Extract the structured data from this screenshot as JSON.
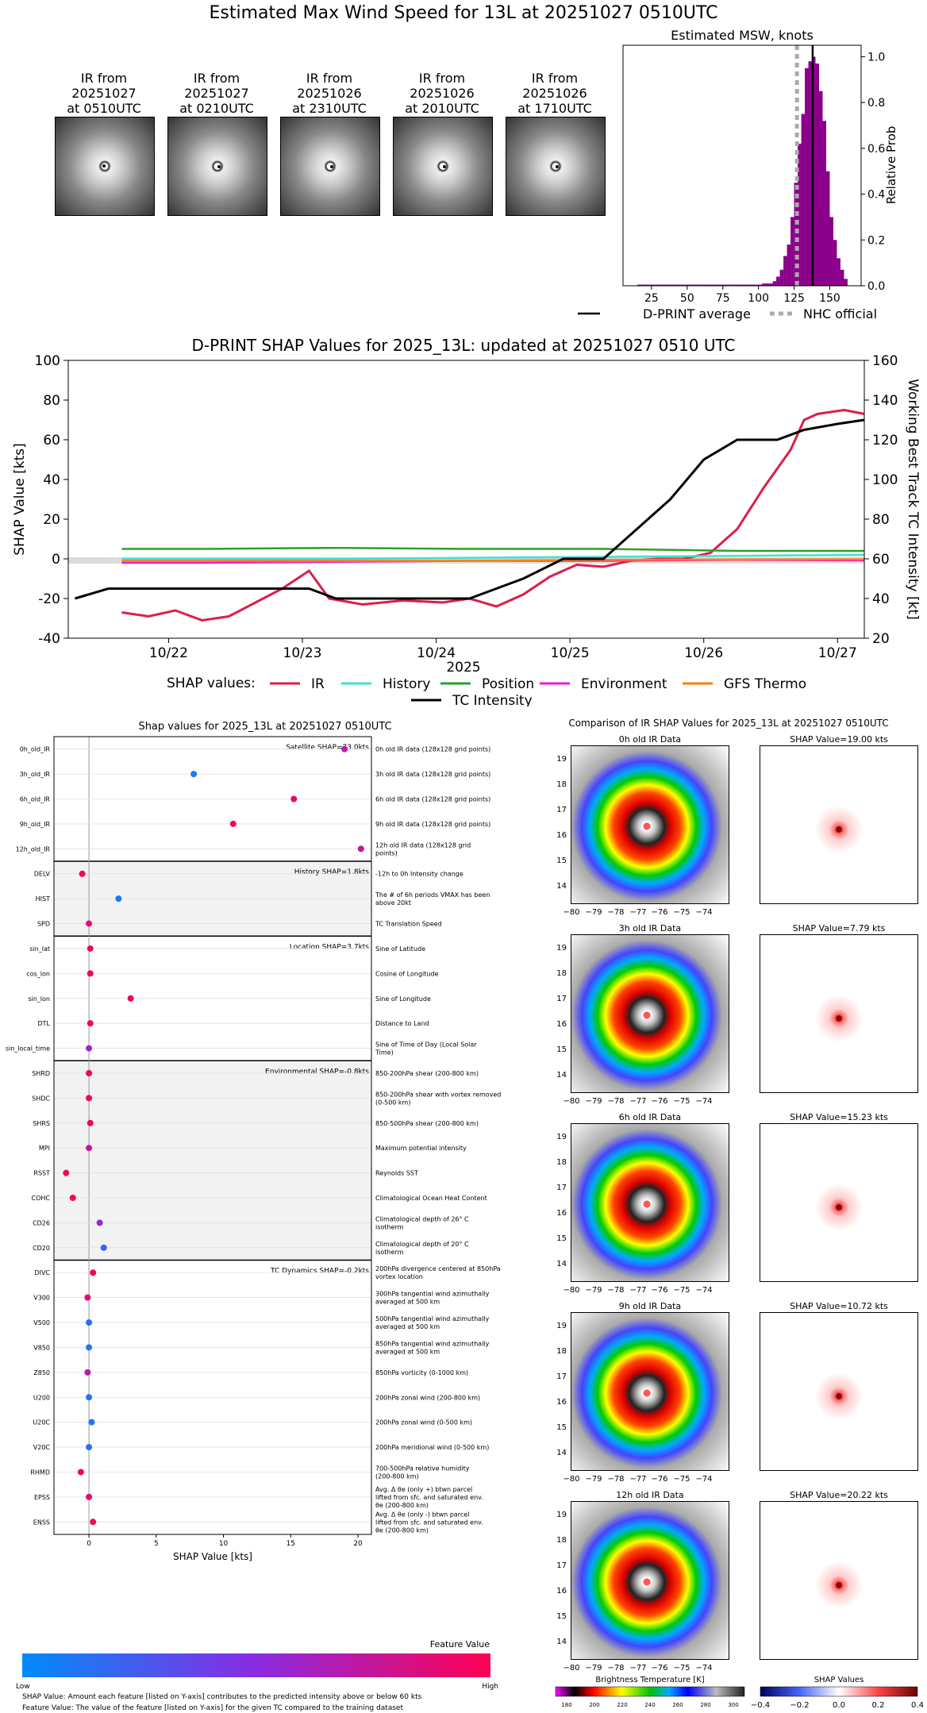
{
  "main_title": "Estimated Max Wind Speed for 13L at 20251027 0510UTC",
  "satellite_panels": [
    {
      "line1": "IR from",
      "line2": "20251027",
      "line3": "at 0510UTC"
    },
    {
      "line1": "IR from",
      "line2": "20251027",
      "line3": "at 0210UTC"
    },
    {
      "line1": "IR from",
      "line2": "20251026",
      "line3": "at 2310UTC"
    },
    {
      "line1": "IR from",
      "line2": "20251026",
      "line3": "at 2010UTC"
    },
    {
      "line1": "IR from",
      "line2": "20251026",
      "line3": "at 1710UTC"
    }
  ],
  "msw_hist": {
    "title": "Estimated MSW, knots",
    "ylabel": "Relative Prob",
    "legend": {
      "avg": "D-PRINT average",
      "nhc": "NHC official"
    }
  },
  "shap_ts": {
    "title": "D-PRINT SHAP Values for 2025_13L: updated at 20251027 0510 UTC",
    "ylabel_left": "SHAP Value [kts]",
    "ylabel_right": "Working Best Track TC Intensity [kt]",
    "xlabel": "2025",
    "legend_title": "SHAP values:",
    "legend_items": [
      "IR",
      "History",
      "Position",
      "Environment",
      "GFS Thermo",
      "TC Intensity"
    ]
  },
  "feature_panel": {
    "title": "Shap values for 2025_13L at 20251027 0510UTC",
    "xlabel": "SHAP Value [kts]",
    "group_labels": [
      "Satellite SHAP=73.0kts",
      "History SHAP=1.8kts",
      "Location SHAP=3.7kts",
      "Environmental SHAP=-0.8kts",
      "TC Dynamics SHAP=-0.2kts"
    ],
    "colorbar_title": "Feature Value",
    "colorbar_low": "Low",
    "colorbar_high": "High",
    "footnote1": "SHAP Value: Amount each feature [listed on Y-axis] contributes to the predicted intensity above or below 60 kts",
    "footnote2": "Feature Value: The value of the feature [listed on Y-axis] for the given TC compared to the training dataset"
  },
  "ir_compare": {
    "title": "Comparison of IR SHAP Values for 2025_13L at 20251027 0510UTC",
    "rows": [
      {
        "ir": "0h old IR Data",
        "shap": "SHAP Value=19.00 kts"
      },
      {
        "ir": "3h old IR Data",
        "shap": "SHAP Value=7.79 kts"
      },
      {
        "ir": "6h old IR Data",
        "shap": "SHAP Value=15.23 kts"
      },
      {
        "ir": "9h old IR Data",
        "shap": "SHAP Value=10.72 kts"
      },
      {
        "ir": "12h old IR Data",
        "shap": "SHAP Value=20.22 kts"
      }
    ],
    "lat_ticks": [
      "19",
      "18",
      "17",
      "16",
      "15",
      "14"
    ],
    "lon_ticks": [
      "−80",
      "−79",
      "−78",
      "−77",
      "−76",
      "−75",
      "−74"
    ],
    "bt_title": "Brightness Temperature [K]",
    "bt_ticks": [
      "180",
      "200",
      "220",
      "240",
      "260",
      "280",
      "300"
    ],
    "sv_title": "SHAP Values",
    "sv_ticks": [
      "−0.4",
      "−0.2",
      "0.0",
      "0.2",
      "0.4"
    ]
  },
  "chart_data": [
    {
      "type": "bar",
      "title": "Estimated MSW, knots",
      "xlabel": "",
      "ylabel": "Relative Prob",
      "xlim": [
        5,
        172
      ],
      "ylim": [
        0,
        1.05
      ],
      "xticks": [
        25,
        50,
        75,
        100,
        125,
        150
      ],
      "yticks": [
        0.0,
        0.2,
        0.4,
        0.6,
        0.8,
        1.0
      ],
      "bin_width": 2.5,
      "x": [
        15,
        17.5,
        20,
        22.5,
        25,
        27.5,
        30,
        32.5,
        35,
        37.5,
        40,
        42.5,
        45,
        47.5,
        50,
        52.5,
        55,
        57.5,
        60,
        62.5,
        65,
        67.5,
        70,
        72.5,
        75,
        77.5,
        80,
        82.5,
        85,
        87.5,
        90,
        92.5,
        95,
        97.5,
        100,
        102.5,
        105,
        107.5,
        110,
        112.5,
        115,
        117.5,
        120,
        122.5,
        125,
        127.5,
        130,
        132.5,
        135,
        137.5,
        140,
        142.5,
        145,
        147.5,
        150,
        152.5,
        155,
        157.5,
        160
      ],
      "values": [
        0.005,
        0.005,
        0.005,
        0.005,
        0.005,
        0.005,
        0.005,
        0.005,
        0.005,
        0.005,
        0.005,
        0.005,
        0.005,
        0.005,
        0.005,
        0.005,
        0.005,
        0.005,
        0.005,
        0.005,
        0.005,
        0.005,
        0.005,
        0.005,
        0.005,
        0.005,
        0.005,
        0.005,
        0.005,
        0.005,
        0.005,
        0.005,
        0.005,
        0.005,
        0.005,
        0.01,
        0.01,
        0.01,
        0.02,
        0.04,
        0.07,
        0.13,
        0.18,
        0.3,
        0.45,
        0.62,
        0.75,
        0.95,
        0.98,
        1.0,
        0.97,
        0.85,
        0.72,
        0.5,
        0.3,
        0.2,
        0.12,
        0.07,
        0.03
      ],
      "vlines": [
        {
          "name": "D-PRINT average",
          "x": 138
        },
        {
          "name": "NHC official",
          "x": 127
        }
      ]
    },
    {
      "type": "line",
      "title": "D-PRINT SHAP Values for 2025_13L: updated at 20251027 0510 UTC",
      "xlabel": "2025",
      "ylabel": "SHAP Value [kts]",
      "ylabel_right": "Working Best Track TC Intensity [kt]",
      "xlim": [
        0,
        5.95
      ],
      "ylim": [
        -40,
        100
      ],
      "ylim_right": [
        20,
        160
      ],
      "xtick_labels": [
        "10/22",
        "10/23",
        "10/24",
        "10/25",
        "10/26",
        "10/27"
      ],
      "xtick_values": [
        0.75,
        1.75,
        2.75,
        3.75,
        4.75,
        5.75
      ],
      "yticks": [
        -40,
        -20,
        0,
        20,
        40,
        60,
        80,
        100
      ],
      "yticks_right": [
        20,
        40,
        60,
        80,
        100,
        120,
        140,
        160
      ],
      "series": [
        {
          "name": "IR",
          "color": "#dc1e4b",
          "x": [
            0.4,
            0.6,
            0.8,
            1.0,
            1.2,
            1.4,
            1.6,
            1.8,
            1.95,
            2.2,
            2.5,
            2.8,
            3.0,
            3.2,
            3.4,
            3.6,
            3.8,
            4.0,
            4.2,
            4.4,
            4.6,
            4.8,
            5.0,
            5.2,
            5.4,
            5.5,
            5.6,
            5.8,
            5.95
          ],
          "values": [
            -27,
            -29,
            -26,
            -31,
            -29,
            -22,
            -15,
            -6,
            -20,
            -23,
            -21,
            -22,
            -20,
            -24,
            -18,
            -9,
            -3,
            -4,
            -1,
            0,
            0,
            3,
            15,
            36,
            55,
            70,
            73,
            75,
            73
          ]
        },
        {
          "name": "History",
          "color": "#40e0d0",
          "x": [
            0.4,
            1.0,
            2.0,
            3.0,
            4.0,
            5.0,
            5.95
          ],
          "values": [
            0,
            0,
            0,
            0.5,
            1,
            1.5,
            2
          ]
        },
        {
          "name": "Position",
          "color": "#2ca02c",
          "x": [
            0.4,
            1.0,
            2.0,
            3.0,
            4.0,
            5.0,
            5.95
          ],
          "values": [
            5,
            5,
            5.5,
            5,
            5,
            4,
            4
          ]
        },
        {
          "name": "Environment",
          "color": "#e81ed8",
          "x": [
            0.4,
            1.0,
            2.0,
            3.0,
            4.0,
            5.0,
            5.95
          ],
          "values": [
            -2,
            -2,
            -1.5,
            -1,
            -1,
            -0.5,
            -0.8
          ]
        },
        {
          "name": "GFS Thermo",
          "color": "#ff7f0e",
          "x": [
            0.4,
            1.0,
            2.0,
            3.0,
            4.0,
            5.0,
            5.95
          ],
          "values": [
            -1,
            -1,
            -1,
            -1,
            -0.5,
            -0.3,
            -0.2
          ]
        },
        {
          "name": "TC Intensity",
          "color": "#000000",
          "axis": "right",
          "x": [
            0.05,
            0.3,
            1.0,
            1.8,
            2.0,
            3.0,
            3.4,
            3.7,
            4.0,
            4.5,
            4.75,
            5.0,
            5.3,
            5.5,
            5.75,
            5.95
          ],
          "values": [
            40,
            45,
            45,
            45,
            40,
            40,
            50,
            60,
            60,
            90,
            110,
            120,
            120,
            125,
            128,
            130
          ]
        }
      ]
    },
    {
      "type": "scatter",
      "title": "Shap values for 2025_13L at 20251027 0510UTC",
      "xlabel": "SHAP Value [kts]",
      "xlim": [
        -2.6,
        21
      ],
      "xticks": [
        0,
        5,
        10,
        15,
        20
      ],
      "features": [
        "0h_old_IR",
        "3h_old_IR",
        "6h_old_IR",
        "9h_old_IR",
        "12h_old_IR",
        "DELV",
        "HIST",
        "SPD",
        "sin_lat",
        "cos_lon",
        "sin_lon",
        "DTL",
        "sin_local_time",
        "SHRD",
        "SHDC",
        "SHRS",
        "MPI",
        "RSST",
        "COHC",
        "CD26",
        "CD20",
        "DIVC",
        "V300",
        "V500",
        "V850",
        "Z850",
        "U200",
        "U20C",
        "V20C",
        "RHMD",
        "EPSS",
        "ENSS"
      ],
      "descriptions": [
        "0h old IR data (128x128 grid points)",
        "3h old IR data (128x128 grid points)",
        "6h old IR data (128x128 grid points)",
        "9h old IR data (128x128 grid points)",
        "12h old IR data (128x128 grid points)",
        "-12h to 0h Intensity change",
        "The # of 6h periods VMAX has been above 20kt",
        "TC Translation Speed",
        "Sine of Latitude",
        "Cosine of Longitude",
        "Sine of Longitude",
        "Distance to Land",
        "Sine of Time of Day (Local Solar Time)",
        "850-200hPa shear (200-800 km)",
        "850-200hPa shear with vortex removed (0-500 km)",
        "850-500hPa shear (200-800 km)",
        "Maximum potential intensity",
        "Reynolds SST",
        "Climatological Ocean Heat Content",
        "Climatological depth of 26° C isotherm",
        "Climatological depth of 20° C isotherm",
        "200hPa divergence centered at 850hPa vortex location",
        "300hPa tangential wind azimuthally averaged at 500 km",
        "500hPa tangential wind azimuthally averaged at 500 km",
        "850hPa tangential wind azimuthally averaged at 500 km",
        "850hPa vorticity (0-1000 km)",
        "200hPa zonal wind (200-800 km)",
        "200hPa zonal wind (0-500 km)",
        "200hPa meridional wind (0-500 km)",
        "700-500hPa relative humidity (200-800 km)",
        "Avg. Δ θe (only +) btwn parcel lifted from sfc. and saturated env. θe (200-800 km)",
        "Avg. Δ θe (only -) btwn parcel lifted from sfc. and saturated env. θe (200-800 km)"
      ],
      "values": [
        19.0,
        7.79,
        15.23,
        10.72,
        20.22,
        -0.5,
        2.2,
        0.0,
        0.1,
        0.1,
        3.1,
        0.1,
        0.0,
        0.0,
        0.0,
        0.1,
        0.0,
        -1.7,
        -1.2,
        0.8,
        1.1,
        0.3,
        -0.1,
        0.0,
        0.0,
        -0.1,
        0.0,
        0.2,
        0.0,
        -0.6,
        0.0,
        0.3
      ],
      "feature_value_rank": [
        0.7,
        0.1,
        0.9,
        0.95,
        0.75,
        0.95,
        0.1,
        0.9,
        0.95,
        0.95,
        0.95,
        0.95,
        0.6,
        0.95,
        0.95,
        0.95,
        0.75,
        0.95,
        0.95,
        0.55,
        0.2,
        0.95,
        0.9,
        0.15,
        0.1,
        0.7,
        0.1,
        0.1,
        0.15,
        0.95,
        0.9,
        0.95
      ]
    }
  ]
}
